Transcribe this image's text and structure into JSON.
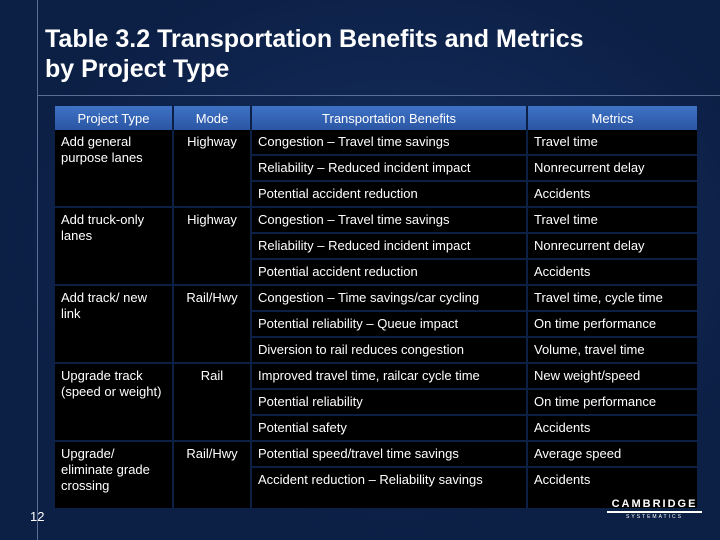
{
  "title": {
    "line1": "Table 3.2   Transportation Benefits and Metrics",
    "line2": "by Project Type"
  },
  "table": {
    "headers": [
      "Project Type",
      "Mode",
      "Transportation Benefits",
      "Metrics"
    ],
    "groups": [
      {
        "project_type": "Add general purpose lanes",
        "mode": "Highway",
        "rows": [
          {
            "benefit": "Congestion – Travel time savings",
            "metric": "Travel time"
          },
          {
            "benefit": "Reliability – Reduced incident impact",
            "metric": "Nonrecurrent delay"
          },
          {
            "benefit": "Potential accident reduction",
            "metric": "Accidents"
          }
        ]
      },
      {
        "project_type": "Add truck-only lanes",
        "mode": "Highway",
        "rows": [
          {
            "benefit": "Congestion – Travel time savings",
            "metric": "Travel time"
          },
          {
            "benefit": "Reliability – Reduced incident impact",
            "metric": "Nonrecurrent delay"
          },
          {
            "benefit": "Potential accident reduction",
            "metric": "Accidents"
          }
        ]
      },
      {
        "project_type": "Add track/ new link",
        "mode": "Rail/Hwy",
        "rows": [
          {
            "benefit": "Congestion – Time savings/car cycling",
            "metric": "Travel time, cycle time"
          },
          {
            "benefit": "Potential reliability – Queue impact",
            "metric": "On time performance"
          },
          {
            "benefit": "Diversion to rail reduces congestion",
            "metric": "Volume, travel time"
          }
        ]
      },
      {
        "project_type": "Upgrade track (speed or weight)",
        "mode": "Rail",
        "rows": [
          {
            "benefit": "Improved travel time, railcar cycle time",
            "metric": "New weight/speed"
          },
          {
            "benefit": "Potential reliability",
            "metric": "On time performance"
          },
          {
            "benefit": "Potential safety",
            "metric": "Accidents"
          }
        ]
      },
      {
        "project_type": "Upgrade/ eliminate grade crossing",
        "mode": "Rail/Hwy",
        "rows": [
          {
            "benefit": "Potential speed/travel time savings",
            "metric": "Average speed"
          },
          {
            "benefit": "Accident reduction – Reliability savings",
            "metric": "Accidents"
          }
        ]
      }
    ]
  },
  "page_number": "12",
  "logo": {
    "main": "CAMBRIDGE",
    "sub": "SYSTEMATICS"
  },
  "colors": {
    "background": "#0c1f45",
    "header_fill": "#3366bb",
    "cell_fill": "#000000",
    "text": "#ffffff"
  }
}
